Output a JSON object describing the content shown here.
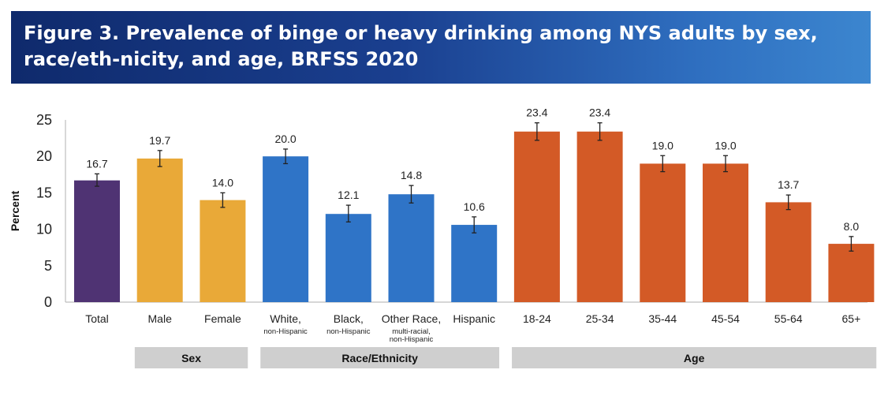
{
  "title": "Figure 3. Prevalence of binge or heavy drinking among NYS adults by sex, race/eth-nicity, and age, BRFSS 2020",
  "chart_data": {
    "type": "bar",
    "ylabel": "Percent",
    "ylim": [
      0,
      25
    ],
    "yticks": [
      0,
      5,
      10,
      15,
      20,
      25
    ],
    "grid": false,
    "categories": [
      {
        "label": "Total",
        "sub": [],
        "value": 16.7,
        "ci": [
          15.9,
          17.6
        ],
        "color": "#4f3373"
      },
      {
        "label": "Male",
        "sub": [],
        "value": 19.7,
        "ci": [
          18.6,
          20.8
        ],
        "color": "#e9a938"
      },
      {
        "label": "Female",
        "sub": [],
        "value": 14.0,
        "ci": [
          13.0,
          15.0
        ],
        "color": "#e9a938"
      },
      {
        "label": "White,",
        "sub": [
          "non-Hispanic"
        ],
        "value": 20.0,
        "ci": [
          19.0,
          21.0
        ],
        "color": "#2f74c7"
      },
      {
        "label": "Black,",
        "sub": [
          "non-Hispanic"
        ],
        "value": 12.1,
        "ci": [
          11.0,
          13.3
        ],
        "color": "#2f74c7"
      },
      {
        "label": "Other Race,",
        "sub": [
          "multi-racial,",
          "non-Hispanic"
        ],
        "value": 14.8,
        "ci": [
          13.6,
          16.0
        ],
        "color": "#2f74c7"
      },
      {
        "label": "Hispanic",
        "sub": [],
        "value": 10.6,
        "ci": [
          9.5,
          11.7
        ],
        "color": "#2f74c7"
      },
      {
        "label": "18-24",
        "sub": [],
        "value": 23.4,
        "ci": [
          22.2,
          24.6
        ],
        "color": "#d35a26"
      },
      {
        "label": "25-34",
        "sub": [],
        "value": 23.4,
        "ci": [
          22.2,
          24.6
        ],
        "color": "#d35a26"
      },
      {
        "label": "35-44",
        "sub": [],
        "value": 19.0,
        "ci": [
          17.9,
          20.1
        ],
        "color": "#d35a26"
      },
      {
        "label": "45-54",
        "sub": [],
        "value": 19.0,
        "ci": [
          17.9,
          20.1
        ],
        "color": "#d35a26"
      },
      {
        "label": "55-64",
        "sub": [],
        "value": 13.7,
        "ci": [
          12.7,
          14.7
        ],
        "color": "#d35a26"
      },
      {
        "label": "65+",
        "sub": [],
        "value": 8.0,
        "ci": [
          7.0,
          9.0
        ],
        "color": "#d35a26"
      }
    ],
    "groups": [
      {
        "label": "Sex",
        "from": 1,
        "to": 2
      },
      {
        "label": "Race/Ethnicity",
        "from": 3,
        "to": 6
      },
      {
        "label": "Age",
        "from": 7,
        "to": 12
      }
    ]
  },
  "colors": {
    "banner": "#1a3f8f",
    "group_bar": "#cfcfcf"
  }
}
